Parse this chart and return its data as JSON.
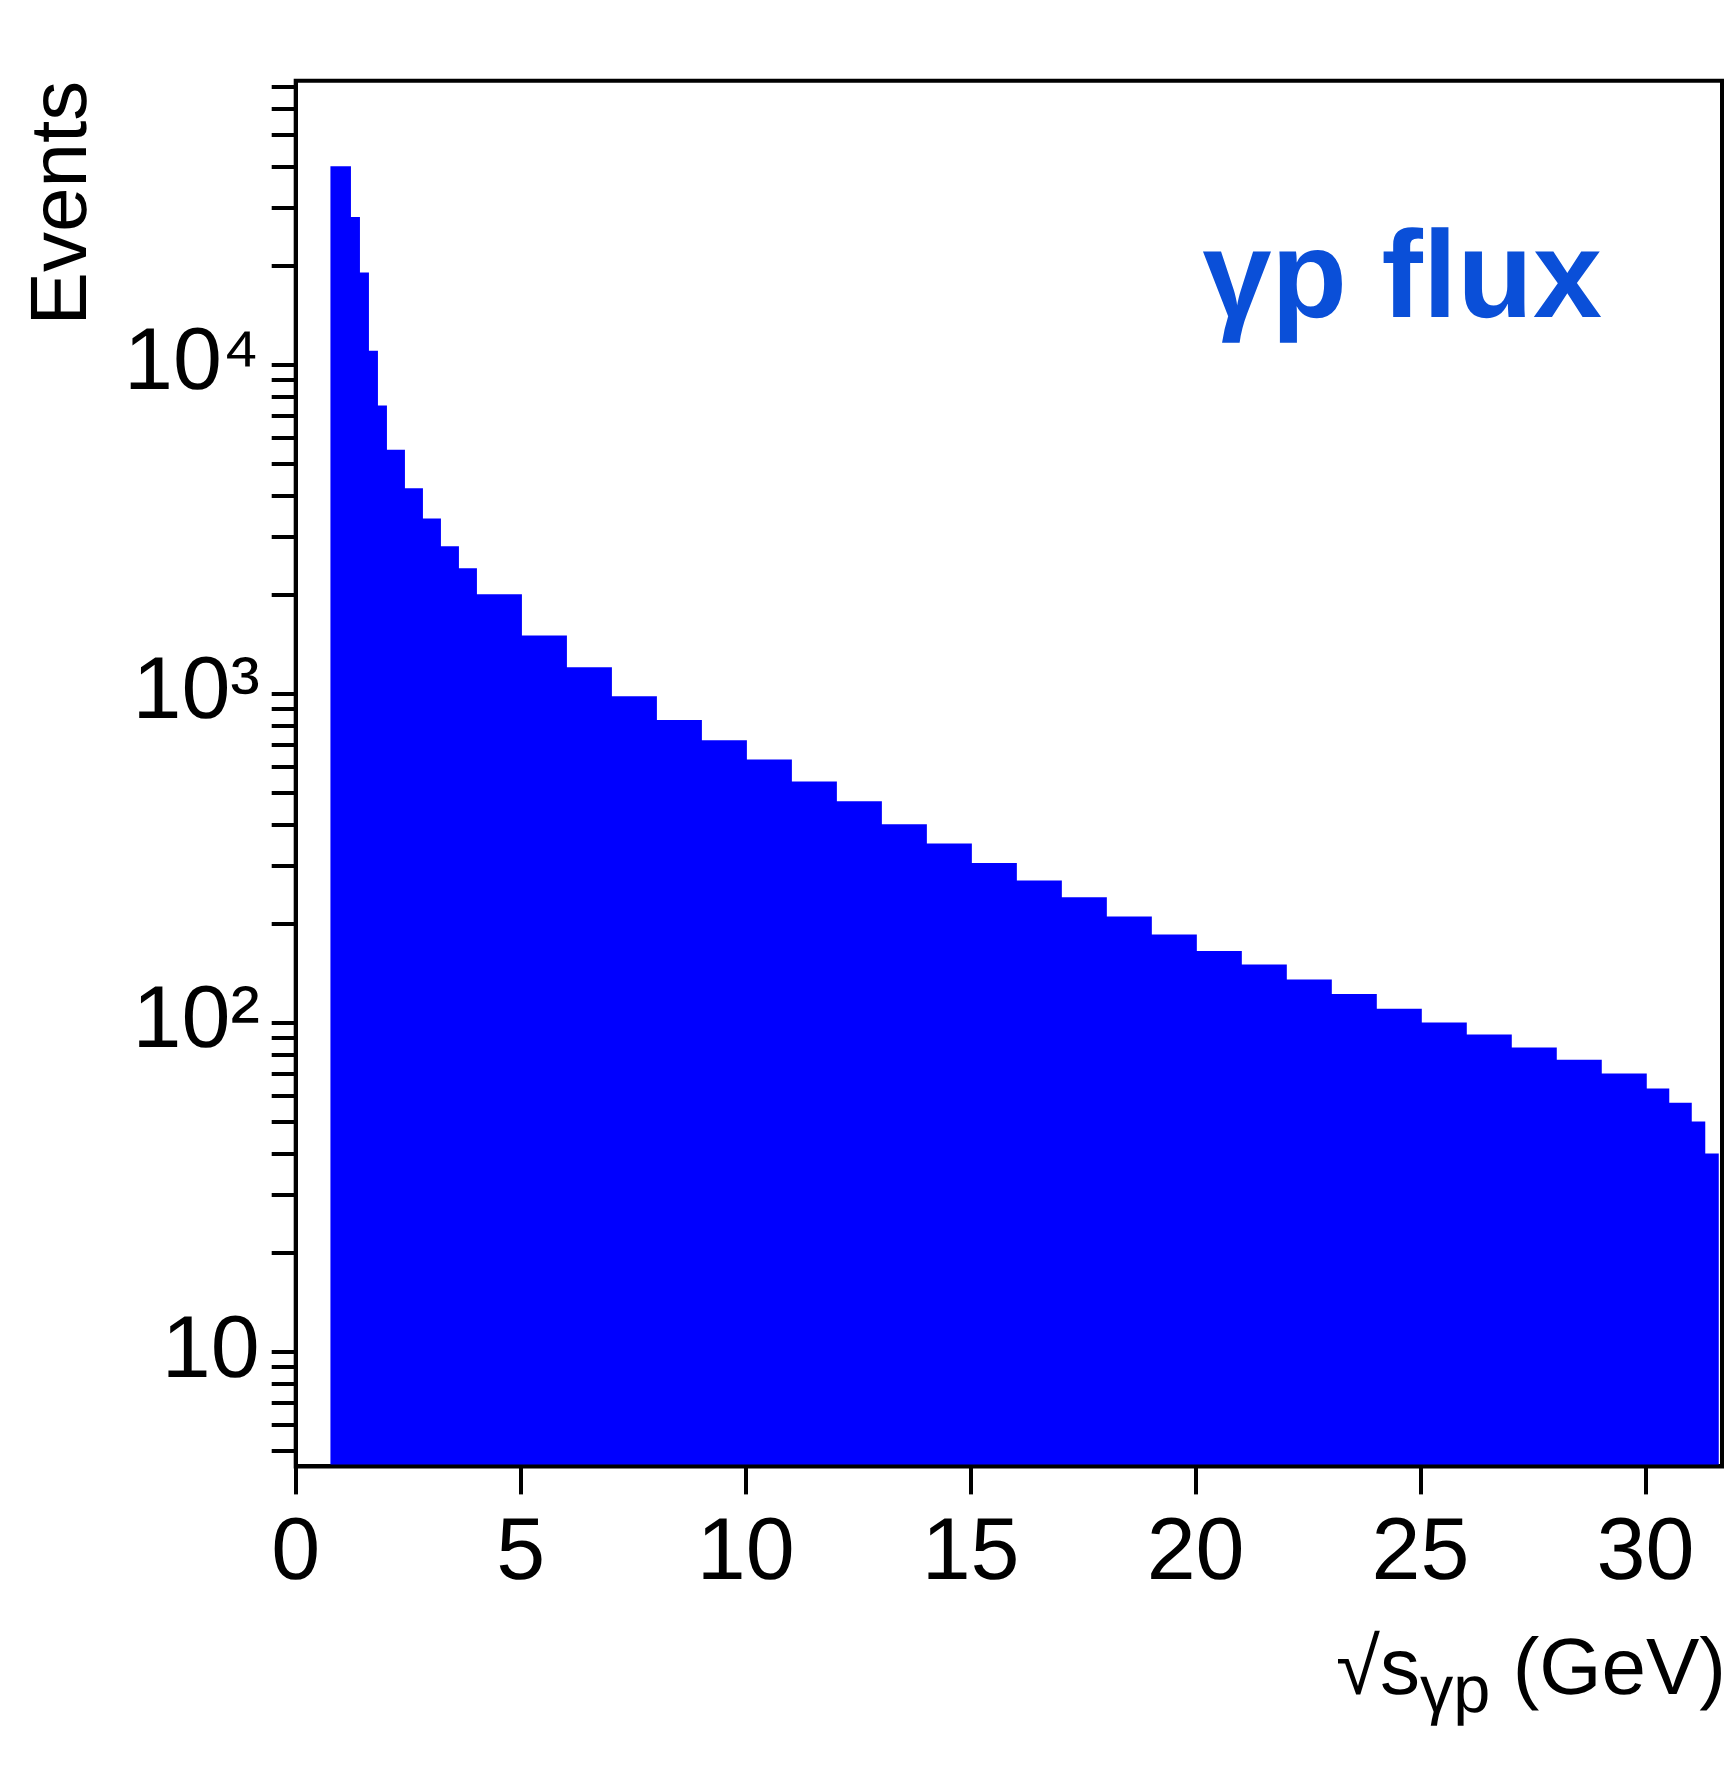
{
  "chart_data": {
    "type": "histogram",
    "title": "γp flux",
    "xlabel": "√s$_{γp}$ (GeV)",
    "ylabel": "Events",
    "color": "#0000ff",
    "log": "y",
    "bins": [
      0.8,
      1.2,
      1.4,
      1.6,
      1.8,
      2.0,
      2.4,
      2.8,
      3.2,
      3.6,
      4,
      5,
      6,
      7,
      8,
      9,
      10,
      11,
      12,
      13,
      14,
      15,
      16,
      17,
      18,
      19,
      20,
      21,
      22,
      23,
      24,
      25,
      26,
      27,
      28,
      29,
      30,
      30.5,
      31,
      31.3,
      31.6
    ],
    "values": [
      40000,
      28000,
      19000,
      11000,
      7500,
      5500,
      4200,
      3400,
      2800,
      2400,
      2000,
      1500,
      1200,
      980,
      830,
      720,
      630,
      540,
      470,
      400,
      350,
      305,
      270,
      240,
      210,
      185,
      165,
      150,
      135,
      122,
      110,
      100,
      92,
      84,
      77,
      70,
      63,
      57,
      50,
      40
    ],
    "xlim": [
      0,
      31.7
    ],
    "xticks": [
      0,
      5,
      10,
      15,
      20,
      25,
      30
    ],
    "ylim": [
      4.5,
      73000
    ],
    "yticks": [
      {
        "value": 5,
        "label": null
      },
      {
        "value": 6,
        "label": null
      },
      {
        "value": 7,
        "label": null
      },
      {
        "value": 8,
        "label": null
      },
      {
        "value": 9,
        "label": null
      },
      10,
      {
        "value": 20,
        "label": null
      },
      {
        "value": 30,
        "label": null
      },
      {
        "value": 40,
        "label": null
      },
      {
        "value": 50,
        "label": null
      },
      {
        "value": 60,
        "label": null
      },
      {
        "value": 70,
        "label": null
      },
      {
        "value": 80,
        "label": null
      },
      {
        "value": 90,
        "label": null
      },
      {
        "value": 100,
        "label": "10²"
      },
      {
        "value": 200,
        "label": null
      },
      {
        "value": 300,
        "label": null
      },
      {
        "value": 400,
        "label": null
      },
      {
        "value": 500,
        "label": null
      },
      {
        "value": 600,
        "label": null
      },
      {
        "value": 700,
        "label": null
      },
      {
        "value": 800,
        "label": null
      },
      {
        "value": 900,
        "label": null
      },
      {
        "value": 1000,
        "label": "10³"
      },
      {
        "value": 2000,
        "label": null
      },
      {
        "value": 3000,
        "label": null
      },
      {
        "value": 4000,
        "label": null
      },
      {
        "value": 5000,
        "label": null
      },
      {
        "value": 6000,
        "label": null
      },
      {
        "value": 7000,
        "label": null
      },
      {
        "value": 8000,
        "label": null
      },
      {
        "value": 9000,
        "label": null
      },
      {
        "value": 10000,
        "label": "10⁴"
      },
      {
        "value": 20000,
        "label": null
      },
      {
        "value": 30000,
        "label": null
      },
      {
        "value": 40000,
        "label": null
      },
      {
        "value": 50000,
        "label": null
      },
      {
        "value": 60000,
        "label": null
      },
      {
        "value": 70000,
        "label": null
      }
    ]
  }
}
